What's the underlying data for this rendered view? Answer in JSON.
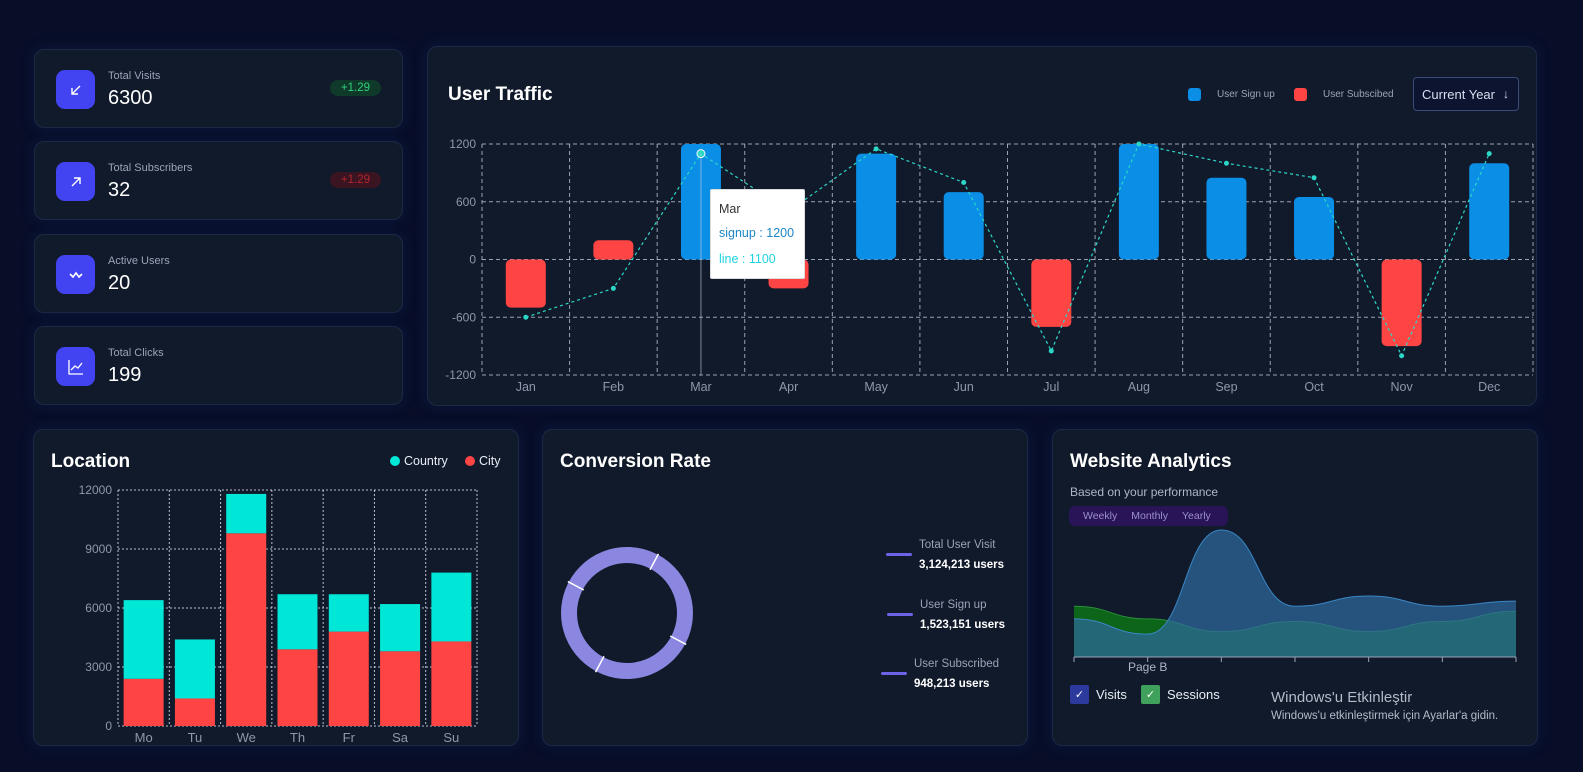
{
  "stats": [
    {
      "label": "Total Visits",
      "value": "6300",
      "badge": "+1.29",
      "trend": "up",
      "icon": "arrow-down-left-icon"
    },
    {
      "label": "Total Subscribers",
      "value": "32",
      "badge": "+1.29",
      "trend": "down",
      "icon": "arrow-up-right-icon"
    },
    {
      "label": "Active Users",
      "value": "20",
      "icon": "activity-icon"
    },
    {
      "label": "Total Clicks",
      "value": "199",
      "icon": "line-chart-icon"
    }
  ],
  "traffic": {
    "title": "User Traffic",
    "legend": [
      {
        "name": "User Sign up",
        "color": "#0a8ee6"
      },
      {
        "name": "User Subscibed",
        "color": "#ff4444"
      }
    ],
    "period_select": "Current Year",
    "tooltip": {
      "month": "Mar",
      "signup": "signup : 1200",
      "line": "line : 1100"
    }
  },
  "location": {
    "title": "Location",
    "legend": [
      {
        "name": "Country",
        "color": "#00e7d8"
      },
      {
        "name": "City",
        "color": "#ff4444"
      }
    ]
  },
  "conversion": {
    "title": "Conversion Rate",
    "items": [
      {
        "label": "Total User Visit",
        "value": "3,124,213 users"
      },
      {
        "label": "User Sign up",
        "value": "1,523,151 users"
      },
      {
        "label": "User Subscribed",
        "value": "948,213 users"
      }
    ],
    "ring_color": "#8b86e0"
  },
  "analytics": {
    "title": "Website Analytics",
    "subtitle": "Based on your performance",
    "tabs": [
      "Weekly",
      "Monthly",
      "Yearly"
    ],
    "page_label": "Page B",
    "checkboxes": [
      {
        "label": "Visits",
        "color": "#2b3a9c"
      },
      {
        "label": "Sessions",
        "color": "#3fa15c"
      }
    ]
  },
  "watermark": {
    "line1": "Windows'u Etkinleştir",
    "line2": "Windows'u etkinleştirmek için Ayarlar'a gidin."
  },
  "chart_data": [
    {
      "type": "bar",
      "title": "User Traffic",
      "categories": [
        "Jan",
        "Feb",
        "Mar",
        "Apr",
        "May",
        "Jun",
        "Jul",
        "Aug",
        "Sep",
        "Oct",
        "Nov",
        "Dec"
      ],
      "ylim": [
        -1200,
        1200
      ],
      "yticks": [
        1200,
        600,
        0,
        -600,
        -1200
      ],
      "grid": true,
      "legend_position": "top-right",
      "series": [
        {
          "name": "User Sign up",
          "type": "bar",
          "color": "#0a8ee6",
          "values": [
            null,
            null,
            1200,
            null,
            1100,
            700,
            null,
            1200,
            850,
            650,
            null,
            1000
          ]
        },
        {
          "name": "User Subscibed",
          "type": "bar",
          "color": "#ff4444",
          "values": [
            -500,
            200,
            null,
            -300,
            null,
            null,
            -700,
            null,
            null,
            null,
            -900,
            null
          ]
        },
        {
          "type": "line",
          "color": "#2bd8c8",
          "values": [
            -600,
            -300,
            1100,
            500,
            1150,
            800,
            -950,
            1200,
            1000,
            850,
            -1000,
            1100
          ]
        }
      ]
    },
    {
      "type": "bar",
      "title": "Location",
      "stacked": true,
      "categories": [
        "Mo",
        "Tu",
        "We",
        "Th",
        "Fr",
        "Sa",
        "Su"
      ],
      "ylim": [
        0,
        12000
      ],
      "yticks": [
        0,
        3000,
        6000,
        9000,
        12000
      ],
      "grid": true,
      "legend_position": "top-right",
      "series": [
        {
          "name": "City",
          "color": "#ff4444",
          "values": [
            2400,
            1400,
            9800,
            3900,
            4800,
            3800,
            4300
          ]
        },
        {
          "name": "Country",
          "color": "#00e7d8",
          "values": [
            4000,
            3000,
            2000,
            2800,
            1900,
            2400,
            3500
          ]
        }
      ]
    },
    {
      "type": "pie",
      "title": "Conversion Rate",
      "values": [
        1,
        1,
        1,
        1
      ],
      "colors": [
        "#8b86e0",
        "#8b86e0",
        "#8b86e0",
        "#8b86e0"
      ]
    },
    {
      "type": "area",
      "title": "Website Analytics",
      "categories": [
        "",
        "Page B",
        "",
        "",
        "",
        "",
        ""
      ],
      "series": [
        {
          "name": "Visits",
          "color": "#2e6a9e",
          "values": [
            30,
            18,
            100,
            40,
            48,
            40,
            44
          ]
        },
        {
          "name": "Sessions",
          "color": "#0c6e16",
          "values": [
            40,
            30,
            20,
            28,
            20,
            28,
            36
          ]
        }
      ]
    }
  ]
}
